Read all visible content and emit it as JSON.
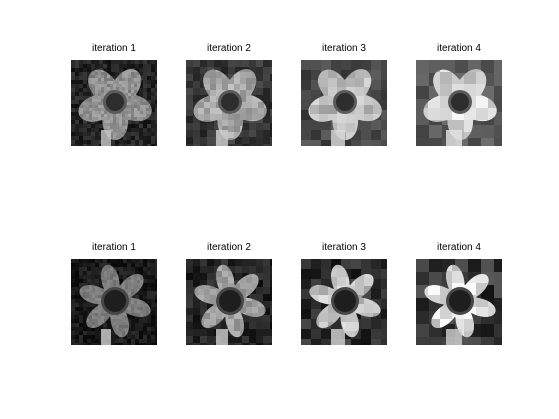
{
  "rows": [
    {
      "panels": [
        {
          "title": "iteration 1"
        },
        {
          "title": "iteration 2"
        },
        {
          "title": "iteration 3"
        },
        {
          "title": "iteration 4"
        }
      ]
    },
    {
      "panels": [
        {
          "title": "iteration 1"
        },
        {
          "title": "iteration 2"
        },
        {
          "title": "iteration 3"
        },
        {
          "title": "iteration 4"
        }
      ]
    }
  ]
}
